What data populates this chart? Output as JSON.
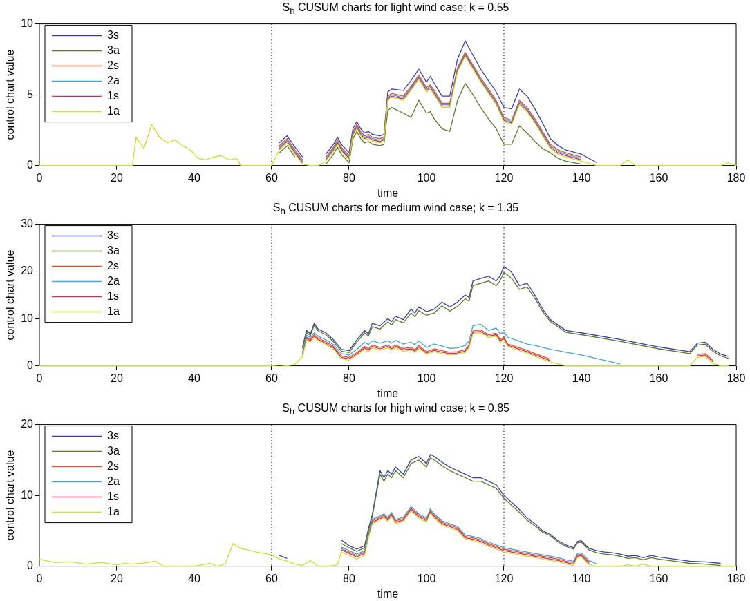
{
  "chart_data": [
    {
      "type": "line",
      "title": "S$_{h}$ CUSUM charts for light wind case; k = 0.55",
      "xlabel": "time",
      "ylabel": "control chart value",
      "xlim": [
        0,
        180
      ],
      "xticks": [
        0,
        20,
        40,
        60,
        80,
        100,
        120,
        140,
        160,
        180
      ],
      "ylim": [
        0,
        10
      ],
      "yticks": [
        0,
        5,
        10
      ],
      "grid": false,
      "legend": "top left",
      "marker": "none",
      "line_style": "solid",
      "ref_lines": [
        {
          "axis": "x",
          "value": 60,
          "color": "#000000",
          "line_style": "dotted"
        },
        {
          "axis": "x",
          "value": 120,
          "color": "#000000",
          "line_style": "dotted"
        }
      ],
      "series": [
        {
          "name": "3s",
          "color": "#3b3fa8",
          "x": [
            62,
            64,
            66,
            68,
            70,
            72,
            74,
            76,
            77,
            78,
            80,
            81,
            82,
            83,
            84,
            85,
            86,
            88,
            89,
            90,
            91,
            94,
            96,
            98,
            100,
            101,
            102,
            104,
            106,
            108,
            110,
            112,
            114,
            116,
            118,
            120,
            122,
            124,
            126,
            128,
            130,
            132,
            134,
            136,
            140,
            144
          ],
          "values": [
            1.6,
            2.1,
            1.3,
            0.6,
            null,
            null,
            0.8,
            1.5,
            2.0,
            1.5,
            0.9,
            2.6,
            3.1,
            2.6,
            2.3,
            2.4,
            2.2,
            2.1,
            2.2,
            5.2,
            5.4,
            5.3,
            6.0,
            6.8,
            5.9,
            6.3,
            5.8,
            4.9,
            4.9,
            7.5,
            8.8,
            7.8,
            6.8,
            6.0,
            5.2,
            4.1,
            4.0,
            5.4,
            4.9,
            4.0,
            3.0,
            1.9,
            1.4,
            1.1,
            0.8,
            0.2
          ]
        },
        {
          "name": "3a",
          "color": "#5a7a2a",
          "x": [
            62,
            64,
            66,
            68,
            70,
            72,
            74,
            76,
            77,
            78,
            80,
            81,
            82,
            83,
            84,
            85,
            86,
            88,
            89,
            90,
            91,
            94,
            96,
            98,
            100,
            101,
            102,
            104,
            106,
            108,
            110,
            112,
            114,
            116,
            118,
            120,
            122,
            124,
            126,
            128,
            130,
            132,
            134,
            136,
            140
          ],
          "values": [
            0.9,
            1.4,
            0.6,
            null,
            null,
            null,
            0.1,
            0.8,
            1.3,
            0.8,
            0.2,
            1.9,
            2.4,
            1.9,
            1.6,
            1.7,
            1.5,
            1.4,
            1.5,
            3.9,
            4.1,
            3.7,
            3.4,
            4.6,
            3.7,
            3.8,
            3.3,
            2.6,
            2.4,
            4.6,
            5.8,
            5.0,
            4.1,
            3.3,
            2.6,
            1.5,
            1.5,
            2.8,
            2.3,
            1.7,
            1.2,
            0.9,
            0.5,
            0.3,
            0.1
          ]
        },
        {
          "name": "2s",
          "color": "#e8502a",
          "x": [
            62,
            64,
            66,
            68,
            70,
            72,
            74,
            76,
            77,
            78,
            80,
            81,
            82,
            83,
            84,
            85,
            86,
            88,
            89,
            90,
            91,
            94,
            96,
            98,
            100,
            101,
            102,
            104,
            106,
            108,
            110,
            112,
            114,
            116,
            118,
            120,
            122,
            124,
            126,
            128,
            130,
            132,
            134,
            136,
            140
          ],
          "values": [
            1.4,
            1.9,
            1.1,
            0.4,
            null,
            null,
            0.6,
            1.3,
            1.8,
            1.3,
            0.7,
            2.4,
            2.9,
            2.4,
            2.1,
            2.2,
            2.0,
            1.9,
            2.0,
            4.9,
            5.1,
            4.9,
            5.6,
            6.4,
            5.5,
            5.7,
            5.3,
            4.4,
            4.4,
            6.9,
            8.0,
            7.1,
            6.2,
            5.4,
            4.6,
            3.4,
            3.2,
            4.6,
            4.1,
            3.3,
            2.4,
            1.5,
            1.1,
            0.9,
            0.6
          ]
        },
        {
          "name": "2a",
          "color": "#4aa0d8",
          "x": [
            62,
            64,
            66,
            68,
            70,
            72,
            74,
            76,
            77,
            78,
            80,
            81,
            82,
            83,
            84,
            85,
            86,
            88,
            89,
            90,
            91,
            94,
            96,
            98,
            100,
            101,
            102,
            104,
            106,
            108,
            110,
            112,
            114,
            116,
            118,
            120,
            122,
            124,
            126,
            128,
            130,
            132,
            134,
            136,
            140
          ],
          "values": [
            1.3,
            1.8,
            1.0,
            0.3,
            null,
            null,
            0.5,
            1.2,
            1.7,
            1.2,
            0.6,
            2.3,
            2.8,
            2.3,
            2.0,
            2.1,
            1.9,
            1.8,
            1.9,
            4.8,
            5.0,
            4.8,
            5.5,
            6.3,
            5.4,
            5.6,
            5.2,
            4.3,
            4.3,
            6.8,
            7.9,
            7.0,
            6.1,
            5.3,
            4.5,
            3.3,
            3.1,
            4.5,
            4.0,
            3.2,
            2.3,
            1.4,
            1.0,
            0.8,
            0.5
          ]
        },
        {
          "name": "1s",
          "color": "#c0306a",
          "x": [
            62,
            64,
            66,
            68,
            70,
            72,
            74,
            76,
            77,
            78,
            80,
            81,
            82,
            83,
            84,
            85,
            86,
            88,
            89,
            90,
            91,
            94,
            96,
            98,
            100,
            101,
            102,
            104,
            106,
            108,
            110,
            112,
            114,
            116,
            118,
            120,
            122,
            124,
            126,
            128,
            130,
            132,
            134,
            136,
            140
          ],
          "values": [
            1.2,
            1.7,
            0.9,
            0.2,
            null,
            null,
            0.4,
            1.1,
            1.6,
            1.1,
            0.5,
            2.2,
            2.7,
            2.2,
            1.9,
            2.0,
            1.8,
            1.7,
            1.8,
            4.7,
            4.9,
            4.7,
            5.4,
            6.2,
            5.3,
            5.5,
            5.1,
            4.2,
            4.2,
            6.7,
            7.8,
            6.9,
            6.0,
            5.2,
            4.4,
            3.2,
            3.0,
            4.4,
            3.9,
            3.1,
            2.2,
            1.3,
            0.9,
            0.7,
            0.4
          ]
        },
        {
          "name": "1a",
          "color": "#c8e030",
          "x": [
            0,
            24,
            25,
            27,
            29,
            31,
            33,
            35,
            37,
            39,
            41,
            43,
            45,
            47,
            49,
            51,
            52,
            60,
            62,
            64,
            66,
            68,
            70,
            72,
            74,
            76,
            77,
            78,
            80,
            81,
            82,
            83,
            84,
            85,
            86,
            88,
            89,
            90,
            91,
            94,
            96,
            98,
            100,
            101,
            102,
            104,
            106,
            108,
            110,
            112,
            114,
            116,
            118,
            120,
            122,
            124,
            126,
            128,
            130,
            132,
            134,
            136,
            140,
            144,
            146,
            150,
            152,
            154,
            176,
            178,
            180
          ],
          "values": [
            0,
            0,
            2.0,
            1.2,
            2.9,
            2.0,
            1.6,
            1.8,
            1.4,
            1.1,
            0.5,
            0.4,
            0.6,
            0.7,
            0.4,
            0.5,
            0,
            0,
            1.1,
            1.6,
            0.8,
            0.1,
            0,
            0,
            0.3,
            1.0,
            1.5,
            1.0,
            0.4,
            2.1,
            2.6,
            2.1,
            1.8,
            1.9,
            1.7,
            1.6,
            1.7,
            4.6,
            4.8,
            4.6,
            5.3,
            6.1,
            5.2,
            5.4,
            5.0,
            4.1,
            4.1,
            6.6,
            7.7,
            6.8,
            5.9,
            5.1,
            4.3,
            3.1,
            2.9,
            4.3,
            3.8,
            3.0,
            2.1,
            1.2,
            0.8,
            0.6,
            0.3,
            0,
            0,
            0,
            0.4,
            0,
            0,
            0.2,
            0
          ]
        }
      ]
    },
    {
      "type": "line",
      "title": "S$_{h}$ CUSUM charts for medium wind case; k = 1.35",
      "xlabel": "time",
      "ylabel": "control chart value",
      "xlim": [
        0,
        180
      ],
      "xticks": [
        0,
        20,
        40,
        60,
        80,
        100,
        120,
        140,
        160,
        180
      ],
      "ylim": [
        0,
        30
      ],
      "yticks": [
        0,
        10,
        20,
        30
      ],
      "grid": false,
      "legend": "top left",
      "marker": "none",
      "line_style": "solid",
      "ref_lines": [
        {
          "axis": "x",
          "value": 60,
          "color": "#000000",
          "line_style": "dotted"
        },
        {
          "axis": "x",
          "value": 120,
          "color": "#000000",
          "line_style": "dotted"
        }
      ],
      "series": [
        {
          "name": "3s",
          "color": "#3b3fa8",
          "x": [
            68,
            69,
            70,
            71,
            72,
            74,
            76,
            78,
            80,
            82,
            84,
            85,
            86,
            88,
            90,
            91,
            92,
            94,
            96,
            97,
            98,
            100,
            102,
            104,
            106,
            108,
            110,
            111,
            112,
            114,
            116,
            118,
            119,
            120,
            121,
            122,
            124,
            126,
            128,
            130,
            132,
            136,
            140,
            150,
            160,
            168,
            170,
            172,
            174,
            176,
            178
          ],
          "values": [
            4.0,
            7.5,
            6.8,
            9.0,
            7.8,
            7.0,
            5.5,
            3.5,
            3.2,
            5.5,
            7.5,
            6.8,
            9,
            8.5,
            10,
            9.4,
            10.5,
            9.8,
            12,
            11.2,
            12.5,
            11.5,
            12,
            13.5,
            12.5,
            13.5,
            15,
            14.5,
            18,
            18.5,
            19,
            18,
            19,
            21,
            20.5,
            19.8,
            17,
            17.5,
            15,
            12,
            9.8,
            7.5,
            7,
            5.6,
            4,
            3,
            4.8,
            5,
            3.5,
            2.5,
            2
          ]
        },
        {
          "name": "3a",
          "color": "#5a7a2a",
          "x": [
            68,
            69,
            70,
            71,
            72,
            74,
            76,
            78,
            80,
            82,
            84,
            85,
            86,
            88,
            90,
            91,
            92,
            94,
            96,
            97,
            98,
            100,
            102,
            104,
            106,
            108,
            110,
            111,
            112,
            114,
            116,
            118,
            119,
            120,
            121,
            122,
            124,
            126,
            128,
            130,
            132,
            136,
            140,
            150,
            160,
            168,
            170,
            172,
            174,
            176,
            178
          ],
          "values": [
            3.6,
            7.1,
            6.4,
            8.6,
            7.4,
            6.6,
            5.1,
            3.1,
            2.8,
            5.0,
            7.0,
            6.3,
            8.3,
            7.8,
            9.3,
            8.7,
            9.8,
            9.1,
            11.2,
            10.4,
            11.7,
            10.7,
            11.2,
            12.7,
            11.6,
            12.6,
            14.2,
            13.7,
            17,
            17.5,
            18,
            17,
            18,
            19.8,
            19.2,
            18.5,
            16.2,
            16.7,
            14.3,
            11.5,
            9.4,
            7.1,
            6.6,
            5.2,
            3.6,
            2.6,
            4.4,
            4.6,
            3.1,
            2.1,
            1.6
          ]
        },
        {
          "name": "2s",
          "color": "#e8502a",
          "x": [
            68,
            69,
            70,
            71,
            72,
            74,
            76,
            78,
            80,
            82,
            84,
            85,
            86,
            88,
            90,
            91,
            92,
            94,
            96,
            97,
            98,
            100,
            102,
            104,
            106,
            108,
            110,
            111,
            112,
            114,
            116,
            118,
            119,
            120,
            121,
            122,
            124,
            126,
            128,
            130,
            132,
            136,
            140,
            150,
            160,
            168,
            170,
            172,
            174
          ],
          "values": [
            2.6,
            6.1,
            5.6,
            6.6,
            5.9,
            5.1,
            4.1,
            2.1,
            1.8,
            2.8,
            4.1,
            3.6,
            4.4,
            3.9,
            4.4,
            3.9,
            4.4,
            3.7,
            3.9,
            3.4,
            4.3,
            3.0,
            3.6,
            3.2,
            2.9,
            3.0,
            3.4,
            4.4,
            7.4,
            7.6,
            6.6,
            6.9,
            5.6,
            6.1,
            4.6,
            4.4,
            3.8,
            3.3,
            2.6,
            2.0,
            1.4,
            null,
            null,
            null,
            null,
            null,
            2.4,
            2.6,
            1.1
          ]
        },
        {
          "name": "2a",
          "color": "#4aa0d8",
          "x": [
            68,
            69,
            70,
            71,
            72,
            74,
            76,
            78,
            80,
            82,
            84,
            85,
            86,
            88,
            90,
            91,
            92,
            94,
            96,
            97,
            98,
            100,
            102,
            104,
            106,
            108,
            110,
            111,
            112,
            114,
            116,
            118,
            119,
            120,
            121,
            122,
            124,
            126,
            128,
            130,
            132,
            136,
            140,
            150
          ],
          "values": [
            3.0,
            6.5,
            6.0,
            7.0,
            6.3,
            5.5,
            4.5,
            2.6,
            2.3,
            3.5,
            5.0,
            4.5,
            5.3,
            4.8,
            5.3,
            4.8,
            5.4,
            4.6,
            5.0,
            4.5,
            5.3,
            3.9,
            4.6,
            4.2,
            3.7,
            3.8,
            4.3,
            5.3,
            8.5,
            8.8,
            7.5,
            8.0,
            6.8,
            7.2,
            6.0,
            5.8,
            5.2,
            4.6,
            4.3,
            3.9,
            3.5,
            2.9,
            2.3,
            0.4
          ]
        },
        {
          "name": "1s",
          "color": "#c0306a",
          "x": [
            68,
            69,
            70,
            71,
            72,
            74,
            76,
            78,
            80,
            82,
            84,
            85,
            86,
            88,
            90,
            91,
            92,
            94,
            96,
            97,
            98,
            100,
            102,
            104,
            106,
            108,
            110,
            111,
            112,
            114,
            116,
            118,
            119,
            120,
            121,
            122,
            124,
            126,
            128,
            130,
            132,
            136,
            140,
            150,
            160,
            168,
            170,
            172,
            174
          ],
          "values": [
            2.3,
            5.8,
            5.3,
            6.3,
            5.6,
            4.8,
            3.8,
            1.8,
            1.5,
            2.5,
            3.8,
            3.3,
            4.1,
            3.6,
            4.1,
            3.6,
            4.1,
            3.4,
            3.6,
            3.1,
            4.0,
            2.7,
            3.3,
            2.9,
            2.6,
            2.7,
            3.1,
            4.1,
            7.1,
            7.3,
            6.3,
            6.6,
            5.3,
            5.8,
            4.3,
            4.1,
            3.5,
            3.0,
            2.3,
            1.7,
            1.1,
            null,
            null,
            null,
            null,
            null,
            2.1,
            2.3,
            0.8
          ]
        },
        {
          "name": "1a",
          "color": "#c8e030",
          "x": [
            0,
            60,
            62,
            64,
            66,
            68,
            69,
            70,
            71,
            72,
            74,
            76,
            78,
            80,
            82,
            84,
            85,
            86,
            88,
            90,
            91,
            92,
            94,
            96,
            97,
            98,
            100,
            102,
            104,
            106,
            108,
            110,
            111,
            112,
            114,
            116,
            118,
            119,
            120,
            121,
            122,
            124,
            126,
            128,
            130,
            132,
            136,
            140,
            150,
            160,
            168,
            170,
            172,
            174,
            176,
            178
          ],
          "values": [
            0,
            0,
            0.2,
            0,
            0.3,
            2,
            5.5,
            5,
            6,
            5.3,
            4.5,
            3.5,
            1.5,
            1.2,
            2.2,
            3.5,
            3.0,
            3.8,
            3.3,
            3.8,
            3.3,
            3.8,
            3.1,
            3.3,
            2.8,
            3.7,
            2.4,
            3.0,
            2.6,
            2.3,
            2.4,
            2.8,
            3.8,
            6.8,
            7.0,
            6.0,
            6.3,
            5.0,
            5.5,
            4.0,
            3.8,
            3.2,
            2.7,
            2.0,
            1.4,
            0.8,
            0,
            0,
            0,
            0,
            0,
            1.8,
            2,
            0.5,
            0,
            0
          ]
        }
      ]
    },
    {
      "type": "line",
      "title": "S$_{h}$ CUSUM charts for high wind case; k = 0.85",
      "xlabel": "time",
      "ylabel": "control chart value",
      "xlim": [
        0,
        180
      ],
      "xticks": [
        0,
        20,
        40,
        60,
        80,
        100,
        120,
        140,
        160,
        180
      ],
      "ylim": [
        0,
        20
      ],
      "yticks": [
        0,
        10,
        20
      ],
      "grid": false,
      "legend": "top left",
      "marker": "none",
      "line_style": "solid",
      "ref_lines": [
        {
          "axis": "x",
          "value": 60,
          "color": "#000000",
          "line_style": "dotted"
        },
        {
          "axis": "x",
          "value": 120,
          "color": "#000000",
          "line_style": "dotted"
        }
      ],
      "series": [
        {
          "name": "3s",
          "color": "#3b3fa8",
          "x": [
            62,
            64,
            66,
            68,
            70,
            72,
            74,
            76,
            77,
            78,
            80,
            82,
            84,
            85,
            86,
            88,
            89,
            90,
            91,
            92,
            94,
            96,
            98,
            100,
            101,
            102,
            104,
            106,
            108,
            110,
            112,
            114,
            116,
            118,
            120,
            122,
            124,
            126,
            128,
            130,
            132,
            134,
            136,
            138,
            139,
            140,
            142,
            144,
            146,
            148,
            150,
            152,
            154,
            156,
            158,
            160,
            164,
            168,
            172,
            176
          ],
          "values": [
            1.5,
            1.1,
            null,
            null,
            null,
            null,
            null,
            null,
            null,
            3.7,
            2.9,
            2.4,
            2.9,
            5.3,
            7.3,
            13.5,
            12.5,
            13.5,
            13,
            14,
            13,
            15,
            15.5,
            14.5,
            15.8,
            15.5,
            14.7,
            14,
            13.5,
            13,
            12.5,
            12.5,
            12,
            11.5,
            10,
            9,
            8,
            6.8,
            6,
            5,
            4.5,
            3.6,
            3,
            2.6,
            3.5,
            3.6,
            2.5,
            2.2,
            2.0,
            1.9,
            1.7,
            1.4,
            1.5,
            1.2,
            1.5,
            1.3,
            1.0,
            0.7,
            0.6,
            0.4
          ]
        },
        {
          "name": "3a",
          "color": "#5a7a2a",
          "x": [
            78,
            80,
            82,
            84,
            85,
            86,
            88,
            89,
            90,
            91,
            92,
            94,
            96,
            98,
            100,
            101,
            102,
            104,
            106,
            108,
            110,
            112,
            114,
            116,
            118,
            120,
            122,
            124,
            126,
            128,
            130,
            132,
            134,
            136,
            138,
            139,
            140,
            142,
            144,
            146,
            148,
            150,
            152,
            154,
            156,
            158,
            160,
            164,
            168,
            172,
            176
          ],
          "values": [
            3.2,
            2.6,
            2.1,
            2.6,
            5.0,
            7.0,
            13,
            12,
            13,
            12.5,
            13.5,
            12.5,
            14.5,
            15,
            14,
            15.3,
            15,
            14.2,
            13.5,
            13,
            12.5,
            12,
            12,
            11.5,
            11,
            9.6,
            8.6,
            7.6,
            6.5,
            5.7,
            4.8,
            4.3,
            3.4,
            2.8,
            2.4,
            3.3,
            3.4,
            2.3,
            1.9,
            1.7,
            1.6,
            1.4,
            1.1,
            1.2,
            0.9,
            1.2,
            1.0,
            0.7,
            0.4,
            0.3,
            0.1
          ]
        },
        {
          "name": "2s",
          "color": "#e8502a",
          "x": [
            78,
            80,
            82,
            84,
            85,
            86,
            88,
            89,
            90,
            91,
            92,
            94,
            96,
            98,
            100,
            101,
            102,
            104,
            106,
            108,
            110,
            112,
            114,
            116,
            118,
            120,
            122,
            124,
            126,
            128,
            130,
            132,
            134,
            136,
            138,
            139,
            140,
            142
          ],
          "values": [
            2.5,
            2.0,
            1.5,
            2.0,
            4.4,
            6.4,
            6.9,
            7.2,
            6.7,
            7.4,
            6.4,
            6.7,
            8.2,
            7.2,
            6.6,
            7.9,
            7.2,
            6.2,
            5.8,
            5.4,
            4.2,
            4.0,
            3.7,
            3.2,
            2.8,
            2.4,
            2.2,
            2.0,
            1.8,
            1.6,
            1.4,
            1.2,
            1.0,
            0.7,
            0.5,
            1.6,
            1.7,
            0.6
          ]
        },
        {
          "name": "2a",
          "color": "#4aa0d8",
          "x": [
            78,
            80,
            82,
            84,
            85,
            86,
            88,
            89,
            90,
            91,
            92,
            94,
            96,
            98,
            100,
            101,
            102,
            104,
            106,
            108,
            110,
            112,
            114,
            116,
            118,
            120,
            122,
            124,
            126,
            128,
            130,
            132,
            134,
            136,
            138,
            139,
            140,
            142,
            144
          ],
          "values": [
            2.7,
            2.2,
            1.7,
            2.2,
            4.6,
            6.6,
            7.1,
            7.4,
            6.9,
            7.6,
            6.6,
            6.9,
            8.4,
            7.4,
            6.8,
            8.1,
            7.4,
            6.4,
            6.0,
            5.6,
            4.4,
            4.2,
            3.9,
            3.4,
            3.0,
            2.6,
            2.4,
            2.2,
            2.0,
            1.8,
            1.6,
            1.4,
            1.2,
            0.9,
            0.7,
            1.8,
            1.9,
            0.8,
            0.3
          ]
        },
        {
          "name": "1s",
          "color": "#c0306a",
          "x": [
            78,
            80,
            82,
            84,
            85,
            86,
            88,
            89,
            90,
            91,
            92,
            94,
            96,
            98,
            100,
            101,
            102,
            104,
            106,
            108,
            110,
            112,
            114,
            116,
            118,
            120,
            122,
            124,
            126,
            128,
            130,
            132,
            134,
            136,
            138,
            139,
            140,
            142
          ],
          "values": [
            2.3,
            1.8,
            1.3,
            1.8,
            4.2,
            6.2,
            6.7,
            7.0,
            6.5,
            7.2,
            6.2,
            6.5,
            8.0,
            7.0,
            6.4,
            7.7,
            7.0,
            6.0,
            5.6,
            5.2,
            4.0,
            3.8,
            3.5,
            3.0,
            2.6,
            2.2,
            2.0,
            1.8,
            1.6,
            1.4,
            1.2,
            1.0,
            0.8,
            0.5,
            0.3,
            1.4,
            1.5,
            0.4
          ]
        },
        {
          "name": "1a",
          "color": "#c8e030",
          "x": [
            0,
            4,
            8,
            12,
            16,
            20,
            22,
            24,
            28,
            30,
            32,
            40,
            44,
            46,
            48,
            50,
            52,
            54,
            56,
            58,
            60,
            62,
            64,
            66,
            68,
            70,
            72,
            74,
            76,
            77,
            78,
            80,
            82,
            84,
            85,
            86,
            88,
            89,
            90,
            91,
            92,
            94,
            96,
            98,
            100,
            101,
            102,
            104,
            106,
            108,
            110,
            112,
            114,
            116,
            118,
            120,
            122,
            124,
            126,
            128,
            130,
            132,
            134,
            136,
            138,
            139,
            140,
            142,
            144,
            146,
            148,
            150,
            152,
            154,
            156,
            158,
            160,
            164,
            168,
            172,
            176,
            180
          ],
          "values": [
            1.0,
            0.5,
            0.6,
            0.3,
            0.5,
            0.2,
            0.4,
            0.3,
            0.5,
            0.7,
            0,
            0,
            0.4,
            0,
            0.3,
            3.2,
            2.5,
            2.3,
            2.0,
            1.8,
            1.6,
            1.0,
            0.7,
            0.3,
            0.1,
            0.8,
            0,
            0,
            0.1,
            0.2,
            2.0,
            1.5,
            1.0,
            1.5,
            4.0,
            6.0,
            6.5,
            6.8,
            6.3,
            7.0,
            6.0,
            6.3,
            7.8,
            6.8,
            6.2,
            7.5,
            6.8,
            5.8,
            5.4,
            5.0,
            3.8,
            3.6,
            3.3,
            2.8,
            2.4,
            2.0,
            1.8,
            1.6,
            1.4,
            1.2,
            1.0,
            0.8,
            0.6,
            0.3,
            0.1,
            1.2,
            1.3,
            0.2,
            0,
            0,
            0,
            0,
            0.2,
            0,
            0.3,
            0,
            0,
            0,
            0,
            0,
            0,
            0
          ]
        }
      ]
    }
  ]
}
